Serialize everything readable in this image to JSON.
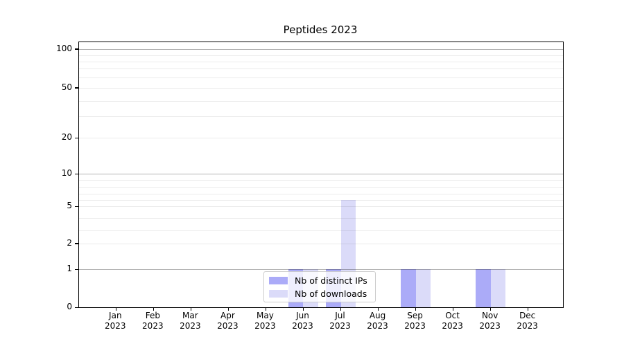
{
  "chart_data": {
    "type": "bar",
    "title": "Peptides 2023",
    "year": "2023",
    "months": [
      "Jan",
      "Feb",
      "Mar",
      "Apr",
      "May",
      "Jun",
      "Jul",
      "Aug",
      "Sep",
      "Oct",
      "Nov",
      "Dec"
    ],
    "series": [
      {
        "name": "Nb of distinct IPs",
        "color": "#ababf8",
        "values": [
          0,
          0,
          0,
          0,
          0,
          1,
          1,
          0,
          1,
          0,
          1,
          0
        ]
      },
      {
        "name": "Nb of downloads",
        "color": "#dbdbf9",
        "values": [
          0,
          0,
          0,
          0,
          0,
          1,
          6,
          0,
          1,
          0,
          1,
          0
        ]
      }
    ],
    "y_axis": {
      "tick_labels": [
        100,
        50,
        20,
        10,
        5,
        2,
        1,
        0
      ],
      "major_gridline_values": [
        1,
        10,
        100
      ],
      "minor_gridline_values": [
        2,
        3,
        4,
        5,
        6,
        7,
        8,
        9,
        20,
        30,
        40,
        50,
        60,
        70,
        80,
        90
      ],
      "range": [
        0,
        100
      ],
      "scale": "log-like with linear 0-1 segment"
    },
    "x_axis": {
      "tick_label_line2": "2023"
    },
    "legend_position": "bottom-center",
    "grid": true,
    "colors": {
      "background": "#ffffff",
      "axis": "#000000",
      "distinct_ips_bar": "#ababf8",
      "downloads_bar": "#dbdbf9"
    }
  }
}
